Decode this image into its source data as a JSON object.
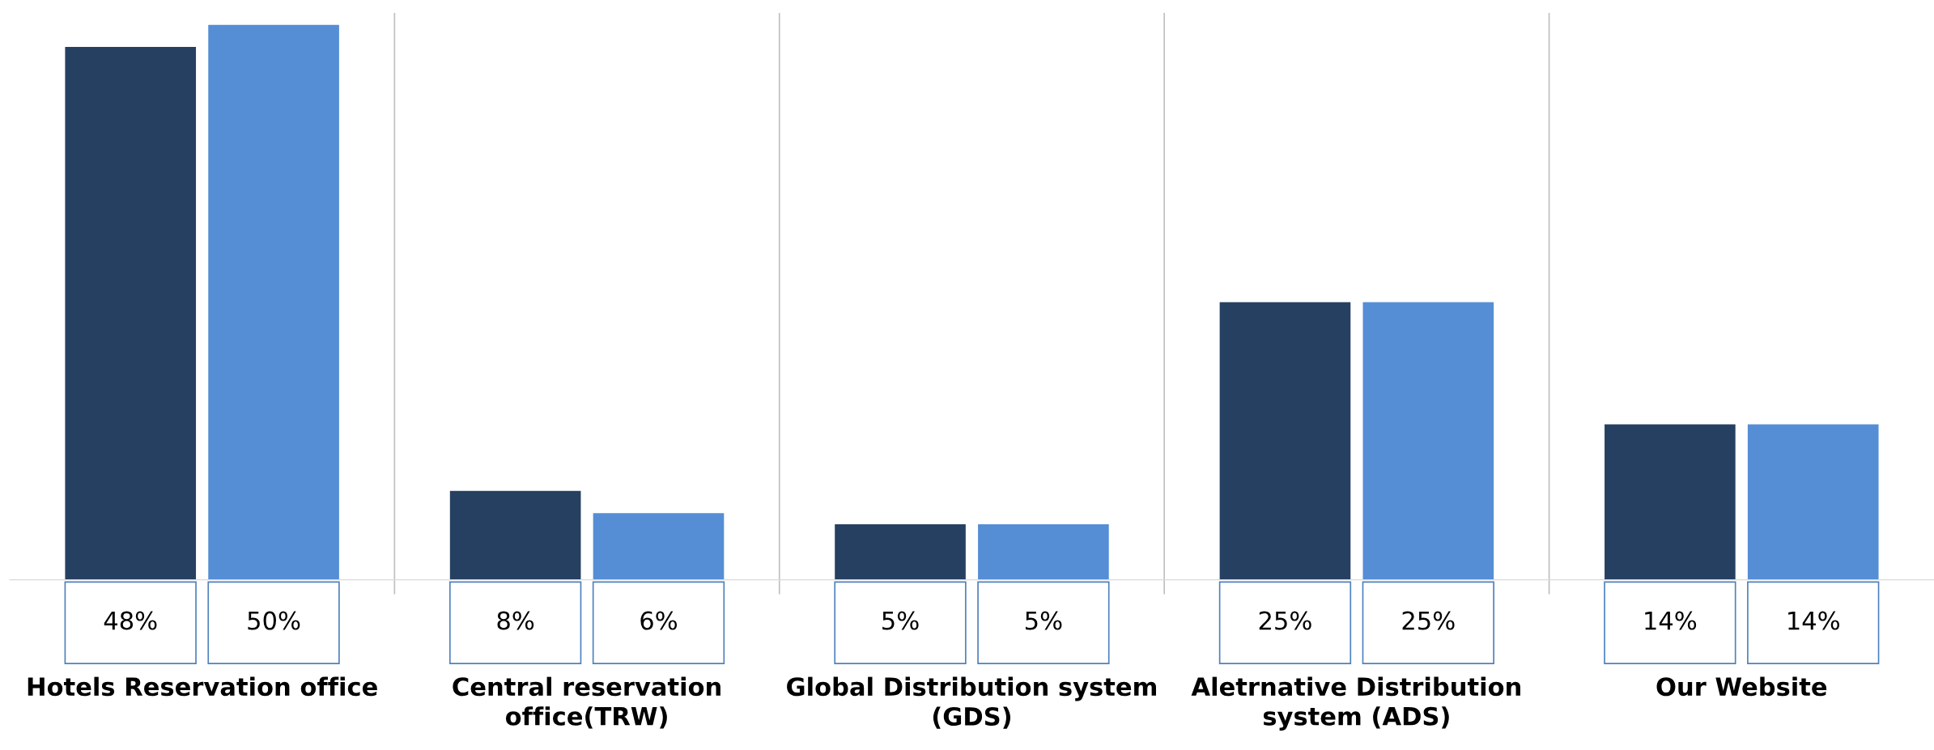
{
  "chart_data": {
    "type": "bar",
    "grid": "x",
    "categories": [
      "Hotels Reservation office",
      "Central reservation\noffice(TRW)",
      "Global Distribution system\n(GDS)",
      "Aletrnative Distribution\nsystem (ADS)",
      "Our Website"
    ],
    "series": [
      {
        "color": "#264061",
        "values": [
          48,
          8,
          5,
          25,
          14
        ],
        "value_labels": [
          "48%",
          "8%",
          "5%",
          "25%",
          "14%"
        ]
      },
      {
        "color": "#558ed5",
        "values": [
          50,
          6,
          5,
          25,
          14
        ],
        "value_labels": [
          "50%",
          "6%",
          "5%",
          "25%",
          "14%"
        ]
      }
    ]
  }
}
